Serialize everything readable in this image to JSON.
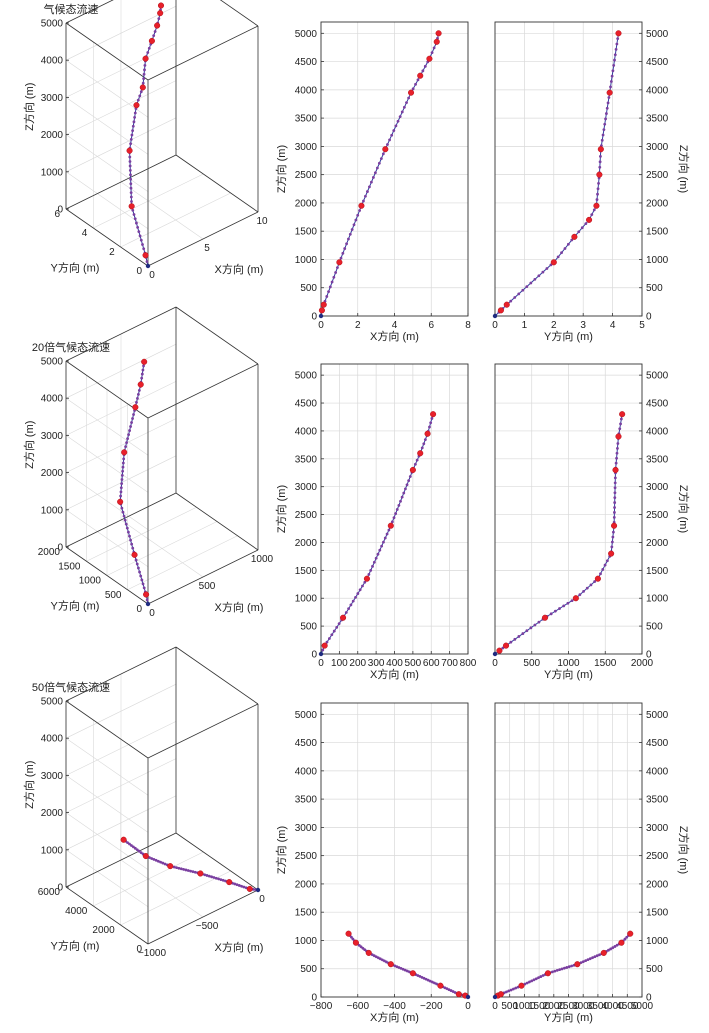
{
  "chart_data": [
    {
      "type": "line3d",
      "title": "气候态流速",
      "xlabel": "X方向 (m)",
      "ylabel": "Y方向 (m)",
      "zlabel": "Z方向 (m)",
      "xlim": [
        0,
        10
      ],
      "ylim": [
        0,
        6
      ],
      "zlim": [
        0,
        5000
      ],
      "xticks": [
        0,
        5,
        10
      ],
      "yticks": [
        0,
        2,
        4,
        6
      ],
      "zticks": [
        0,
        1000,
        2000,
        3000,
        4000,
        5000
      ],
      "grid": true,
      "series": [
        {
          "x": [
            0,
            0.15,
            1.0,
            2.3,
            3.3,
            4.0,
            4.5,
            5.2,
            5.8,
            6.2,
            6.4
          ],
          "y": [
            0,
            0.3,
            2.0,
            3.2,
            3.5,
            3.6,
            3.8,
            3.9,
            4.0,
            4.1,
            4.2
          ],
          "z": [
            0,
            190,
            950,
            1950,
            2950,
            3300,
            3950,
            4300,
            4600,
            4850,
            5000
          ]
        }
      ]
    },
    {
      "type": "line",
      "title": "",
      "xlabel": "X方向 (m)",
      "ylabel": "Z方向 (m)",
      "xlim": [
        0,
        8
      ],
      "ylim": [
        0,
        5200
      ],
      "xticks": [
        0,
        2,
        4,
        6,
        8
      ],
      "yticks": [
        0,
        500,
        1000,
        1500,
        2000,
        2500,
        3000,
        3500,
        4000,
        4500,
        5000
      ],
      "ytick_side": "left",
      "grid": true,
      "series": [
        {
          "x": [
            0,
            0.05,
            0.15,
            1.0,
            2.2,
            3.5,
            4.9,
            5.4,
            5.9,
            6.3,
            6.4
          ],
          "y": [
            0,
            100,
            200,
            950,
            1950,
            2950,
            3950,
            4250,
            4550,
            4850,
            5000
          ]
        }
      ]
    },
    {
      "type": "line",
      "title": "",
      "xlabel": "Y方向 (m)",
      "ylabel": "Z方向 (m)",
      "xlim": [
        0,
        5
      ],
      "ylim": [
        0,
        5200
      ],
      "xticks": [
        0,
        1,
        2,
        3,
        4,
        5
      ],
      "yticks": [
        0,
        500,
        1000,
        1500,
        2000,
        2500,
        3000,
        3500,
        4000,
        4500,
        5000
      ],
      "ytick_side": "right",
      "grid": true,
      "series": [
        {
          "x": [
            0,
            0.2,
            0.4,
            2.0,
            2.7,
            3.2,
            3.45,
            3.55,
            3.6,
            3.9,
            4.2
          ],
          "y": [
            0,
            100,
            200,
            950,
            1400,
            1700,
            1950,
            2500,
            2950,
            3950,
            5000
          ]
        }
      ]
    },
    {
      "type": "line3d",
      "title": "20倍气候态流速",
      "xlabel": "X方向 (m)",
      "ylabel": "Y方向 (m)",
      "zlabel": "Z方向 (m)",
      "xlim": [
        0,
        1000
      ],
      "ylim": [
        0,
        2000
      ],
      "zlim": [
        0,
        5000
      ],
      "xticks": [
        0,
        500,
        1000
      ],
      "yticks": [
        0,
        500,
        1000,
        1500,
        2000
      ],
      "zticks": [
        0,
        1000,
        2000,
        3000,
        4000,
        5000
      ],
      "grid": true,
      "series": [
        {
          "x": [
            0,
            20,
            120,
            250,
            380,
            500,
            560,
            610
          ],
          "y": [
            0,
            100,
            650,
            1350,
            1600,
            1650,
            1680,
            1730
          ],
          "z": [
            0,
            150,
            650,
            1350,
            2300,
            3300,
            3800,
            4300
          ]
        }
      ]
    },
    {
      "type": "line",
      "title": "",
      "xlabel": "X方向 (m)",
      "ylabel": "Z方向 (m)",
      "xlim": [
        0,
        800
      ],
      "ylim": [
        0,
        5200
      ],
      "xticks": [
        0,
        100,
        200,
        300,
        400,
        500,
        600,
        700,
        800
      ],
      "yticks": [
        0,
        500,
        1000,
        1500,
        2000,
        2500,
        3000,
        3500,
        4000,
        4500,
        5000
      ],
      "ytick_side": "left",
      "grid": true,
      "series": [
        {
          "x": [
            0,
            20,
            120,
            250,
            380,
            500,
            540,
            580,
            610
          ],
          "y": [
            0,
            150,
            650,
            1350,
            2300,
            3300,
            3600,
            3950,
            4300
          ]
        }
      ]
    },
    {
      "type": "line",
      "title": "",
      "xlabel": "Y方向 (m)",
      "ylabel": "Z方向 (m)",
      "xlim": [
        0,
        2000
      ],
      "ylim": [
        0,
        5200
      ],
      "xticks": [
        0,
        500,
        1000,
        1500,
        2000
      ],
      "yticks": [
        0,
        500,
        1000,
        1500,
        2000,
        2500,
        3000,
        3500,
        4000,
        4500,
        5000
      ],
      "ytick_side": "right",
      "grid": true,
      "series": [
        {
          "x": [
            0,
            60,
            150,
            680,
            1100,
            1400,
            1580,
            1620,
            1640,
            1680,
            1730
          ],
          "y": [
            0,
            60,
            150,
            650,
            1000,
            1350,
            1800,
            2300,
            3300,
            3900,
            4300
          ]
        }
      ]
    },
    {
      "type": "line3d",
      "title": "50倍气候态流速",
      "xlabel": "X方向 (m)",
      "ylabel": "Y方向 (m)",
      "zlabel": "Z方向 (m)",
      "xlim": [
        -1000,
        0
      ],
      "ylim": [
        0,
        6000
      ],
      "zlim": [
        0,
        5000
      ],
      "xticks": [
        -1000,
        -500,
        0
      ],
      "yticks": [
        0,
        2000,
        4000,
        6000
      ],
      "zticks": [
        0,
        1000,
        2000,
        3000,
        4000,
        5000
      ],
      "grid": true,
      "series": [
        {
          "x": [
            0,
            -50,
            -150,
            -300,
            -450,
            -560,
            -650
          ],
          "y": [
            0,
            200,
            900,
            1800,
            2800,
            3700,
            4600
          ],
          "z": [
            0,
            50,
            200,
            420,
            580,
            780,
            1120
          ]
        }
      ]
    },
    {
      "type": "line",
      "title": "",
      "xlabel": "X方向 (m)",
      "ylabel": "Z方向 (m)",
      "xlim": [
        -800,
        0
      ],
      "ylim": [
        0,
        5200
      ],
      "xticks": [
        -800,
        -600,
        -400,
        -200,
        0
      ],
      "yticks": [
        0,
        500,
        1000,
        1500,
        2000,
        2500,
        3000,
        3500,
        4000,
        4500,
        5000
      ],
      "ytick_side": "left",
      "grid": true,
      "series": [
        {
          "x": [
            0,
            -15,
            -50,
            -150,
            -300,
            -420,
            -540,
            -610,
            -650
          ],
          "y": [
            0,
            25,
            50,
            200,
            420,
            580,
            780,
            960,
            1120
          ]
        }
      ]
    },
    {
      "type": "line",
      "title": "",
      "xlabel": "Y方向 (m)",
      "ylabel": "Z方向 (m)",
      "xlim": [
        0,
        5000
      ],
      "ylim": [
        0,
        5200
      ],
      "xticks": [
        0,
        500,
        1000,
        1500,
        2000,
        2500,
        3000,
        3500,
        4000,
        4500,
        5000
      ],
      "yticks": [
        0,
        500,
        1000,
        1500,
        2000,
        2500,
        3000,
        3500,
        4000,
        4500,
        5000
      ],
      "ytick_side": "right",
      "grid": true,
      "series": [
        {
          "x": [
            0,
            100,
            200,
            900,
            1800,
            2800,
            3700,
            4300,
            4600
          ],
          "y": [
            0,
            25,
            50,
            200,
            420,
            580,
            780,
            960,
            1120
          ]
        }
      ]
    }
  ],
  "colors": {
    "line": "#2f3f9e",
    "marker": "#e8202a",
    "small_marker": "#7a3fa0",
    "grid": "#d9d9d9",
    "axis": "#333333"
  }
}
